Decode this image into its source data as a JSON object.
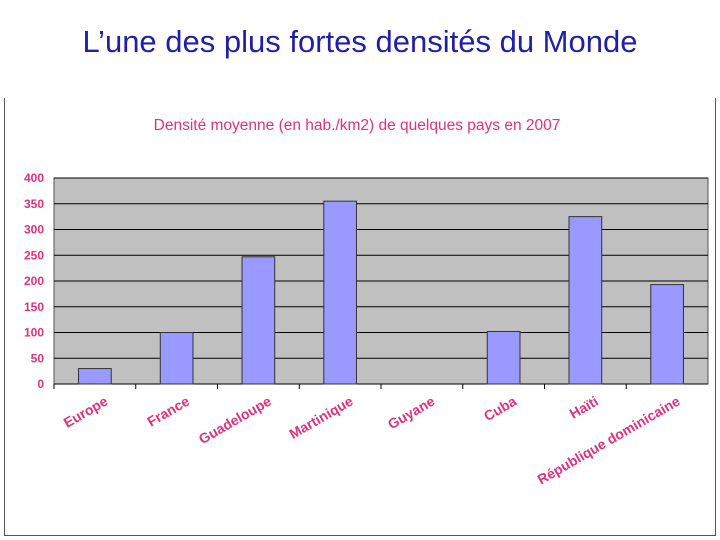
{
  "slide": {
    "title": "L’une des plus fortes densités du Monde"
  },
  "colors": {
    "title": "#1f1fa8",
    "chart_text": "#e2317a",
    "plot_bg": "#c0c0c0",
    "bar_fill": "#9999ff",
    "bar_stroke": "#333333"
  },
  "chart_data": {
    "type": "bar",
    "title": "Densité moyenne (en hab./km2) de quelques pays en 2007",
    "categories": [
      "Europe",
      "France",
      "Guadeloupe",
      "Martinique",
      "Guyane",
      "Cuba",
      "Haïti",
      "République dominicaine"
    ],
    "values": [
      30,
      100,
      247,
      355,
      0,
      102,
      325,
      193
    ],
    "ylim": [
      0,
      400
    ],
    "yticks": [
      0,
      50,
      100,
      150,
      200,
      250,
      300,
      350,
      400
    ],
    "xlabel": "",
    "ylabel": "",
    "grid": true,
    "legend": "none"
  }
}
